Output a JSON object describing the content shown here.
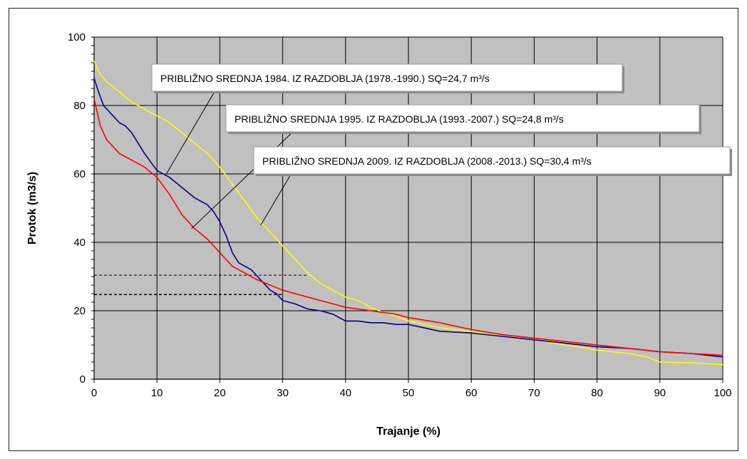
{
  "chart_data": {
    "type": "line",
    "title": "",
    "xlabel": "Trajanje (%)",
    "ylabel": "Protok (m3/s)",
    "xlim": [
      0,
      100
    ],
    "ylim": [
      0,
      100
    ],
    "x_ticks": [
      0,
      10,
      20,
      30,
      40,
      50,
      60,
      70,
      80,
      90,
      100
    ],
    "y_ticks": [
      0,
      20,
      40,
      60,
      80,
      100
    ],
    "grid": true,
    "plot_background": "#c0c0c0",
    "legend": "none",
    "series": [
      {
        "color": "#ffff00",
        "x": [
          0,
          1,
          2,
          4,
          6,
          8,
          10,
          12,
          14,
          16,
          18,
          20,
          22,
          24,
          26,
          28,
          30,
          32,
          34,
          36,
          38,
          40,
          42,
          44,
          46,
          48,
          50,
          55,
          60,
          65,
          70,
          75,
          80,
          85,
          88,
          90,
          95,
          100
        ],
        "y": [
          93,
          89,
          87,
          84,
          81,
          79,
          77,
          75,
          72,
          69,
          66,
          62,
          57,
          52,
          47,
          43,
          39,
          35,
          31,
          28,
          26,
          24,
          23,
          21,
          19.5,
          18.5,
          17,
          15,
          14,
          12.5,
          11.5,
          10,
          8.5,
          7.5,
          6.5,
          5,
          4.8,
          4.2
        ]
      },
      {
        "color": "#00008b",
        "x": [
          0,
          0.7,
          1.5,
          3,
          4,
          5,
          6,
          8,
          10,
          12,
          14,
          16,
          18,
          19,
          20,
          21,
          22,
          23,
          24,
          25,
          26,
          27,
          28,
          29,
          30,
          32,
          34,
          36,
          38,
          40,
          42,
          44,
          46,
          48,
          50,
          55,
          60,
          65,
          70,
          75,
          80,
          85,
          90,
          95,
          100
        ],
        "y": [
          88,
          84,
          80,
          77,
          75,
          74,
          72,
          66,
          61,
          59,
          56,
          53,
          51,
          49,
          46,
          42,
          37,
          34,
          33,
          32,
          30,
          28,
          26,
          25,
          23,
          22,
          20.5,
          20,
          19,
          17,
          17,
          16.5,
          16.5,
          16,
          16,
          14,
          13.5,
          12.5,
          11.5,
          10.5,
          9.5,
          9,
          8,
          7.5,
          6.5
        ]
      },
      {
        "color": "#ff0000",
        "x": [
          0,
          0.5,
          1,
          2,
          3,
          4,
          5,
          6,
          8,
          10,
          12,
          14,
          16,
          18,
          20,
          22,
          24,
          26,
          28,
          30,
          32,
          34,
          36,
          38,
          40,
          42,
          44,
          46,
          48,
          50,
          55,
          60,
          65,
          70,
          75,
          80,
          85,
          90,
          95,
          100
        ],
        "y": [
          82,
          78,
          74,
          70,
          68,
          66,
          65,
          64,
          62,
          59,
          54,
          48,
          44,
          41,
          37,
          33,
          31,
          29,
          27.5,
          26,
          25,
          24,
          23,
          22,
          21,
          20.5,
          20,
          19.5,
          19,
          18,
          16.5,
          14.5,
          13,
          12,
          11,
          10,
          9,
          8,
          7.5,
          7
        ]
      }
    ],
    "reference_lines": [
      {
        "y": 30.4,
        "x_from": 0,
        "x_to": 34
      },
      {
        "y": 24.7,
        "x_from": 0,
        "x_to": 30
      },
      {
        "y": 24.8,
        "x_from": 0,
        "x_to": 30
      }
    ],
    "annotations": [
      {
        "text": "PRIBLIŽNO SREDNJA 1984. IZ RAZDOBLJA (1978.-1990.) SQ=24,7 m³/s",
        "target_x": 11.5,
        "target_y": 60
      },
      {
        "text": "PRIBLIŽNO SREDNJA 1995. IZ RAZDOBLJA (1993.-2007.) SQ=24,8 m³/s",
        "target_x": 15.5,
        "target_y": 44
      },
      {
        "text": "PRIBLIŽNO SREDNJA 2009. IZ RAZDOBLJA (2008.-2013.) SQ=30,4 m³/s",
        "target_x": 26.5,
        "target_y": 45
      }
    ]
  }
}
